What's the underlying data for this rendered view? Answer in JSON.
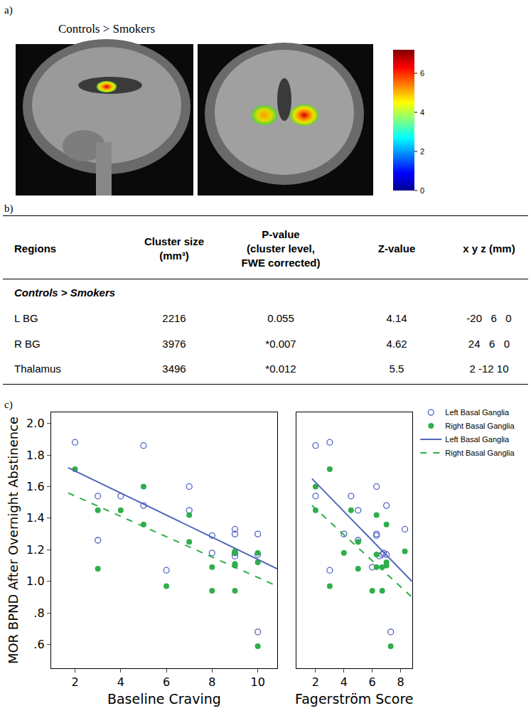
{
  "panel_labels": [
    "a)",
    "b)",
    "c)"
  ],
  "panel_a": {
    "title": "Controls > Smokers",
    "colorbar": {
      "range": [
        0,
        7.2
      ],
      "ticks": [
        0,
        2,
        4,
        6
      ]
    }
  },
  "panel_b": {
    "table": {
      "header": [
        [
          "Regions"
        ],
        [
          "Cluster size",
          "(mm³)"
        ],
        [
          "P-value",
          "(cluster level,",
          "FWE corrected)"
        ],
        [
          "Z-value"
        ],
        [
          "x y z (mm)"
        ]
      ],
      "section": "Controls > Smokers",
      "rows": [
        [
          "L BG",
          "2216",
          "0.055",
          "4.14",
          "-20   6   0"
        ],
        [
          "R BG",
          "3976",
          "*0.007",
          "4.62",
          "24   6   0"
        ],
        [
          "Thalamus",
          "3496",
          "*0.012",
          "5.5",
          "2 -12 10"
        ]
      ]
    }
  },
  "chart_data": [
    {
      "type": "scatter",
      "x_label": "Baseline Craving",
      "y_label": "MOR BPND After Overnight Abstinence",
      "xlim": [
        0.95,
        10.85
      ],
      "xticks": [
        2,
        4,
        6,
        8,
        10
      ],
      "ylim": [
        0.45,
        2.07
      ],
      "yticks": [
        {
          "value": 0.6,
          "label": ".6"
        },
        {
          "value": 0.8,
          "label": ".8"
        },
        {
          "value": 1.0,
          "label": "1.0"
        },
        1.2,
        1.4,
        1.6,
        1.8,
        {
          "value": 2.0,
          "label": "2.0"
        }
      ],
      "legend": "right",
      "series": [
        {
          "name": "Left Basal Ganglia",
          "type": "scatter",
          "marker": "open circle",
          "color": "#4f63c4",
          "x": [
            2,
            3,
            3,
            4,
            5,
            5,
            6,
            7,
            7,
            8,
            8,
            9,
            9,
            9,
            9,
            10,
            10,
            10
          ],
          "values": [
            1.88,
            1.54,
            1.26,
            1.54,
            1.86,
            1.48,
            1.07,
            1.6,
            1.45,
            1.29,
            1.18,
            1.33,
            1.3,
            1.18,
            1.16,
            1.3,
            1.17,
            0.68
          ]
        },
        {
          "name": "Right Basal Ganglia",
          "type": "scatter",
          "marker": "circle",
          "color": "#2fae4a",
          "x": [
            2,
            3,
            3,
            4,
            5,
            5,
            6,
            7,
            7,
            8,
            8,
            9,
            9,
            9,
            9,
            9,
            10,
            10,
            10
          ],
          "values": [
            1.71,
            1.45,
            1.08,
            1.45,
            1.6,
            1.36,
            0.97,
            1.42,
            1.25,
            1.09,
            0.94,
            1.19,
            1.18,
            1.11,
            0.94,
            1.1,
            1.12,
            1.18,
            0.59
          ]
        },
        {
          "name": "Left Basal Ganglia",
          "type": "line",
          "line_style": "solid",
          "color": "#5068b8",
          "x": [
            1.7,
            10.85
          ],
          "values": [
            1.72,
            1.08
          ]
        },
        {
          "name": "Right Basal Ganglia",
          "type": "line",
          "line_style": "dashed",
          "color": "#2fae4a",
          "x": [
            1.7,
            10.85
          ],
          "values": [
            1.56,
            0.97
          ]
        }
      ]
    },
    {
      "type": "scatter",
      "x_label": "Fagerström Score",
      "xlim": [
        0.65,
        8.8
      ],
      "xticks": [
        2,
        4,
        6,
        8
      ],
      "ylim": [
        0.45,
        2.07
      ],
      "tick_labels": "x",
      "series": [
        {
          "name": "Left Basal Ganglia",
          "type": "scatter",
          "marker": "open circle",
          "color": "#4f63c4",
          "x": [
            2,
            2,
            3,
            3,
            4,
            4.5,
            5,
            5,
            6,
            6.3,
            6.3,
            6.3,
            6.5,
            6.7,
            6.8,
            7,
            7,
            7.3,
            8.3
          ],
          "values": [
            1.86,
            1.54,
            1.88,
            1.07,
            1.3,
            1.54,
            1.45,
            1.26,
            1.09,
            1.6,
            1.3,
            1.29,
            1.16,
            1.17,
            1.18,
            1.48,
            1.17,
            0.68,
            1.33
          ]
        },
        {
          "name": "Right Basal Ganglia",
          "type": "scatter",
          "marker": "circle",
          "color": "#2fae4a",
          "x": [
            2,
            2,
            3,
            3,
            4,
            4.5,
            5,
            5,
            6,
            6.3,
            6.3,
            6.3,
            6.7,
            6.7,
            7,
            7,
            7,
            7.3,
            8.3
          ],
          "values": [
            1.6,
            1.45,
            1.71,
            0.97,
            1.18,
            1.45,
            1.25,
            1.08,
            0.94,
            1.42,
            1.17,
            1.09,
            0.94,
            1.09,
            1.36,
            1.12,
            1.1,
            0.59,
            1.19
          ]
        },
        {
          "name": "Left Basal Ganglia",
          "type": "line",
          "line_style": "solid",
          "color": "#5068b8",
          "x": [
            1.75,
            8.8
          ],
          "values": [
            1.65,
            1.0
          ]
        },
        {
          "name": "Right Basal Ganglia",
          "type": "line",
          "line_style": "dashed",
          "color": "#2fae4a",
          "x": [
            1.75,
            8.8
          ],
          "values": [
            1.48,
            0.9
          ]
        }
      ]
    }
  ]
}
